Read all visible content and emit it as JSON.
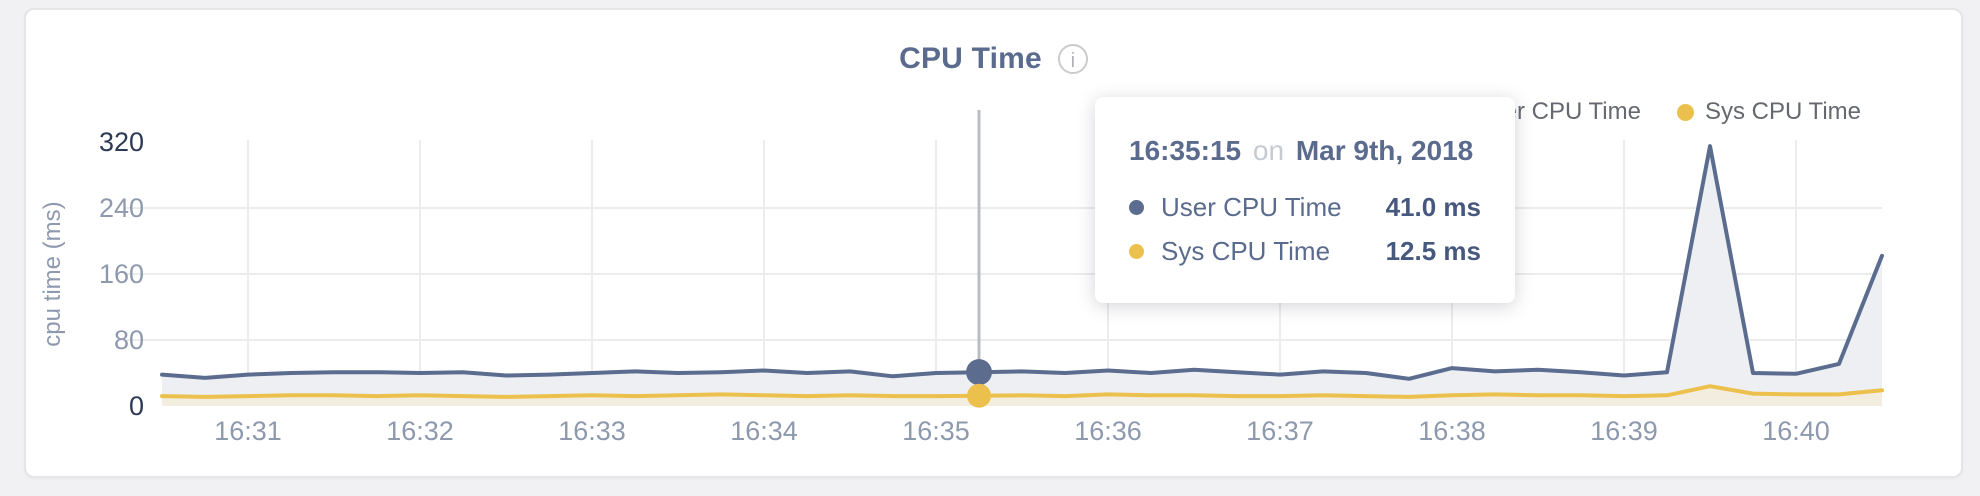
{
  "card": {
    "title": "CPU Time",
    "info_icon": "i"
  },
  "legend": {
    "items": [
      {
        "label": "User CPU Time",
        "color": "#5b6c8f"
      },
      {
        "label": "Sys CPU Time",
        "color": "#ecc04d"
      }
    ]
  },
  "tooltip": {
    "time": "16:35:15",
    "connector": "on",
    "date": "Mar 9th, 2018",
    "rows": [
      {
        "name": "User CPU Time",
        "value": "41.0 ms",
        "color": "#5b6c8f"
      },
      {
        "name": "Sys CPU Time",
        "value": "12.5 ms",
        "color": "#ecc04d"
      }
    ]
  },
  "chart_data": {
    "type": "line",
    "title": "CPU Time",
    "xlabel": "",
    "ylabel": "cpu time (ms)",
    "ylim": [
      0,
      320
    ],
    "grid": true,
    "legend_position": "top-right",
    "y_ticks": [
      {
        "label": "320",
        "value": 320,
        "emphasis": true,
        "gridline": false
      },
      {
        "label": "240",
        "value": 240,
        "emphasis": false,
        "gridline": true
      },
      {
        "label": "160",
        "value": 160,
        "emphasis": false,
        "gridline": true
      },
      {
        "label": "80",
        "value": 80,
        "emphasis": false,
        "gridline": true
      },
      {
        "label": "0",
        "value": 0,
        "emphasis": true,
        "gridline": false
      }
    ],
    "x_ticks": [
      "16:31",
      "16:32",
      "16:33",
      "16:34",
      "16:35",
      "16:36",
      "16:37",
      "16:38",
      "16:39",
      "16:40"
    ],
    "x_start_label": "16:30:30",
    "duration_s": 600,
    "sample_interval_s": 15,
    "first_tick_offset_s": 30,
    "tick_interval_s": 60,
    "hover_index": 19,
    "series": [
      {
        "name": "User CPU Time",
        "color": "#5b6c8f",
        "fill": "#edeff3",
        "values": [
          38,
          34,
          38,
          40,
          41,
          41,
          40,
          41,
          37,
          38,
          40,
          42,
          40,
          41,
          43,
          40,
          42,
          36,
          40,
          41,
          42,
          40,
          43,
          40,
          44,
          41,
          38,
          42,
          40,
          33,
          46,
          42,
          44,
          41,
          37,
          41,
          315,
          40,
          39,
          51,
          182
        ]
      },
      {
        "name": "Sys CPU Time",
        "color": "#ecc04d",
        "fill": "#f2edde",
        "values": [
          12,
          11,
          12,
          13,
          13,
          12,
          13,
          12,
          11,
          12,
          13,
          12,
          13,
          14,
          13,
          12,
          13,
          12,
          12,
          12.5,
          13,
          12,
          14,
          13,
          13,
          12,
          12,
          13,
          12,
          11,
          13,
          14,
          13,
          13,
          12,
          13,
          24,
          15,
          14,
          14,
          19
        ]
      }
    ],
    "colors": {
      "grid": "#ececec",
      "hover_line": "#b9bcc2",
      "tick_light": "#8e99ae",
      "tick_dark": "#2c3a55"
    }
  }
}
